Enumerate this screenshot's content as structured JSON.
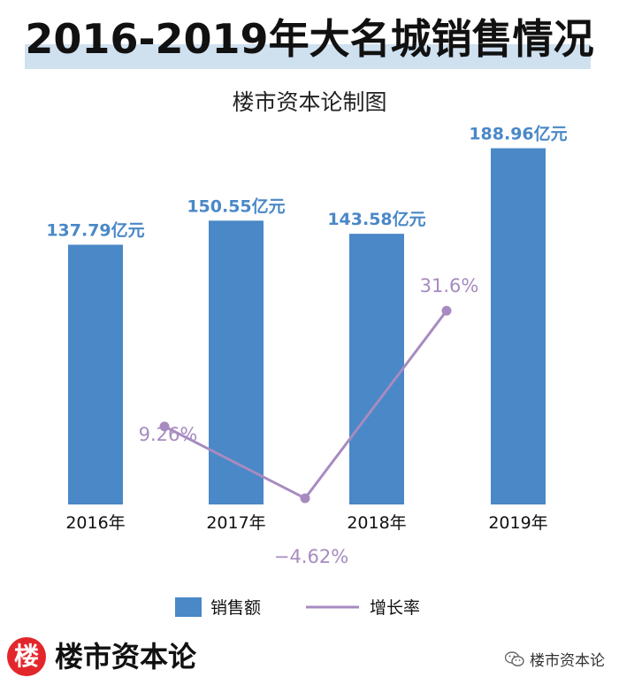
{
  "header": {
    "title": "2016-2019年大名城销售情况",
    "subtitle": "楼市资本论制图"
  },
  "chart_data": {
    "type": "bar",
    "categories": [
      "2016年",
      "2017年",
      "2018年",
      "2019年"
    ],
    "series": [
      {
        "name": "销售额",
        "type": "bar",
        "values": [
          137.79,
          150.55,
          143.58,
          188.96
        ],
        "labels": [
          "137.79亿元",
          "150.55亿元",
          "143.58亿元",
          "188.96亿元"
        ],
        "color": "#4a88c7"
      },
      {
        "name": "增长率",
        "type": "line",
        "points": [
          {
            "category": "2017年",
            "value": 9.26,
            "label": "9.26%"
          },
          {
            "category": "2018年",
            "value": -4.62,
            "label": "−4.62%"
          },
          {
            "category": "2019年",
            "value": 31.6,
            "label": "31.6%"
          }
        ],
        "color": "#a78bc0"
      }
    ],
    "legend_position": "bottom",
    "grid": false
  },
  "footer": {
    "badge": "楼",
    "brand": "楼市资本论",
    "watermark": "楼市资本论"
  }
}
